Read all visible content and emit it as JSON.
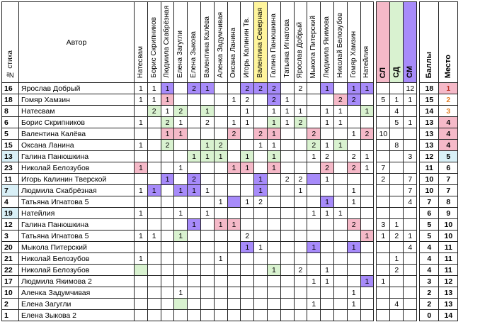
{
  "header": {
    "col_no": "№ стиха",
    "col_author": "Автор",
    "judges": [
      "Натесвам",
      "Борис Скрипников",
      "Людмила Скабрёзная",
      "Елена Загугли",
      "Елена Зыкова",
      "Валентина Калёва",
      "Аленка Задумчивая",
      "Оксана Ланина",
      "Игорь Калинин Тв.",
      "Валентина Северная",
      "Галина Панюшкина",
      "Татьяна Игнатова",
      "Ярослав Добрый",
      "Мыкола Питерский",
      "Людмила Якимова",
      "Николай Белозубов",
      "Гомяр Хамзин",
      "Натейлия"
    ],
    "sum_cols": [
      "СЛ",
      "СД",
      "СМ"
    ],
    "col_score": "Баллы",
    "col_place": "Место"
  },
  "colors": {
    "green": "#d9f2d0",
    "purple": "#a78bfa",
    "pink": "#f5b9c8",
    "light_blue": "#d9f0f7",
    "yellow": "#fff59d",
    "place_red": "#c0392b",
    "place_orange": "#e67e22"
  },
  "rows": [
    {
      "no": "16",
      "author": "Ярослав Добрый",
      "cells": [
        "1",
        "1",
        "1",
        "",
        "2",
        "1",
        "",
        "",
        "2",
        "2",
        "2",
        "",
        "2",
        "",
        "1",
        "",
        "1",
        "1"
      ],
      "cellc": [
        "",
        "",
        "p",
        "",
        "p",
        "p",
        "",
        "",
        "p",
        "p",
        "p",
        "",
        "",
        "",
        "p",
        "",
        "p",
        "p"
      ],
      "sl": "",
      "sd": "",
      "sm": "12",
      "score": "18",
      "place": "1"
    },
    {
      "no": "18",
      "author": "Гомяр Хамзин",
      "cells": [
        "1",
        "1",
        "1",
        "",
        "",
        "",
        "",
        "1",
        "2",
        "",
        "2",
        "1",
        "",
        "",
        "",
        "2",
        "2",
        ""
      ],
      "cellc": [
        "",
        "",
        "k",
        "",
        "",
        "",
        "",
        "",
        "",
        "",
        "p",
        "",
        "",
        "",
        "",
        "k",
        "p",
        ""
      ],
      "sl": "5",
      "sd": "1",
      "sm": "1",
      "score": "15",
      "place": "2"
    },
    {
      "no": "8",
      "author": "Натесвам",
      "cells": [
        "",
        "2",
        "1",
        "2",
        "",
        "1",
        "",
        "",
        "1",
        "",
        "1",
        "1",
        "1",
        "",
        "1",
        "1",
        "",
        "1"
      ],
      "cellc": [
        "",
        "g",
        "",
        "g",
        "",
        "g",
        "",
        "",
        "",
        "",
        "",
        "",
        "",
        "",
        "",
        "",
        "",
        "g"
      ],
      "sl": "",
      "sd": "4",
      "sm": "",
      "score": "14",
      "place": "3"
    },
    {
      "no": "6",
      "author": "Борис Скрипников",
      "cells": [
        "1",
        "",
        "2",
        "1",
        "",
        "2",
        "",
        "1",
        "1",
        "",
        "1",
        "1",
        "2",
        "",
        "1",
        "1",
        "",
        ""
      ],
      "cellc": [
        "",
        "",
        "g",
        "",
        "",
        "",
        "",
        "",
        "",
        "",
        "g",
        "",
        "g",
        "",
        "",
        "",
        "",
        ""
      ],
      "sl": "",
      "sd": "5",
      "sm": "1",
      "score": "13",
      "place": "4"
    },
    {
      "no": "5",
      "author": "Валентина Калёва",
      "cells": [
        "",
        "",
        "1",
        "1",
        "",
        "",
        "",
        "2",
        "",
        "2",
        "1",
        "",
        "",
        "2",
        "",
        "",
        "1",
        "2"
      ],
      "cellc": [
        "",
        "",
        "k",
        "k",
        "",
        "",
        "",
        "k",
        "",
        "k",
        "k",
        "",
        "",
        "k",
        "",
        "",
        "",
        "k"
      ],
      "sl": "10",
      "sd": "",
      "sm": "",
      "score": "13",
      "place": "4"
    },
    {
      "no": "15",
      "author": "Оксана Ланина",
      "cells": [
        "1",
        "",
        "2",
        "",
        "",
        "1",
        "2",
        "",
        "",
        "1",
        "1",
        "",
        "",
        "2",
        "1",
        "1",
        "",
        ""
      ],
      "cellc": [
        "",
        "",
        "g",
        "",
        "",
        "g",
        "g",
        "",
        "",
        "",
        "",
        "",
        "",
        "g",
        "",
        "g",
        "",
        ""
      ],
      "sl": "",
      "sd": "8",
      "sm": "",
      "score": "13",
      "place": "4"
    },
    {
      "no": "13",
      "author": "Галина Панюшкина",
      "cells": [
        "",
        "",
        "",
        "",
        "1",
        "1",
        "1",
        "",
        "1",
        "",
        "1",
        "",
        "",
        "1",
        "2",
        "",
        "2",
        "1"
      ],
      "cellc": [
        "",
        "",
        "",
        "",
        "g",
        "g",
        "g",
        "",
        "g",
        "",
        "g",
        "",
        "",
        "",
        "",
        "",
        "",
        ""
      ],
      "sl": "",
      "sd": "",
      "sm": "3",
      "score": "12",
      "place": "5"
    },
    {
      "no": "23",
      "author": "Николай Белозубов",
      "cells": [
        "1",
        "",
        "",
        "1",
        "",
        "",
        "",
        "1",
        "1",
        "",
        "1",
        "",
        "",
        "",
        "2",
        "",
        "2",
        "1"
      ],
      "cellc": [
        "k",
        "",
        "",
        "",
        "",
        "",
        "",
        "k",
        "k",
        "",
        "k",
        "",
        "",
        "",
        "k",
        "",
        "k",
        ""
      ],
      "sl": "7",
      "sd": "",
      "sm": "",
      "score": "11",
      "place": "6"
    },
    {
      "no": "11",
      "author": "Игорь Калинин Тверской",
      "cells": [
        "",
        "",
        "1",
        "",
        "2",
        "",
        "",
        "",
        "",
        "1",
        "",
        "2",
        "2",
        "",
        "1",
        "",
        "",
        ""
      ],
      "cellc": [
        "",
        "",
        "p",
        "",
        "p",
        "",
        "",
        "",
        "",
        "p",
        "",
        "",
        "",
        "p",
        "",
        "",
        "",
        ""
      ],
      "sl": "2",
      "sd": "",
      "sm": "7",
      "score": "10",
      "place": "7"
    },
    {
      "no": "7",
      "author": "Людмила Скабрёзная",
      "cells": [
        "1",
        "1",
        "",
        "1",
        "1",
        "1",
        "",
        "",
        "",
        "1",
        "",
        "",
        "1",
        "",
        "",
        "",
        "1",
        ""
      ],
      "cellc": [
        "",
        "p",
        "",
        "p",
        "p",
        "",
        "",
        "",
        "",
        "p",
        "",
        "",
        "",
        "",
        "",
        "",
        "",
        ""
      ],
      "sl": "",
      "sd": "",
      "sm": "7",
      "score": "10",
      "place": "7"
    },
    {
      "no": "4",
      "author": "Татьяна Игнатова 5",
      "cells": [
        "",
        "",
        "",
        "",
        "",
        "",
        "1",
        "",
        "1",
        "2",
        "",
        "",
        "",
        "",
        "1",
        "",
        "1",
        ""
      ],
      "cellc": [
        "",
        "",
        "",
        "",
        "",
        "",
        "",
        "p",
        "",
        "",
        "",
        "",
        "",
        "",
        "p",
        "",
        "",
        ""
      ],
      "sl": "",
      "sd": "",
      "sm": "4",
      "score": "7",
      "place": "8"
    },
    {
      "no": "19",
      "author": "Натейлия",
      "cells": [
        "1",
        "",
        "",
        "1",
        "",
        "1",
        "",
        "",
        "",
        "",
        "",
        "",
        "",
        "1",
        "1",
        "1",
        "",
        ""
      ],
      "cellc": [
        "",
        "",
        "",
        "",
        "",
        "",
        "",
        "",
        "",
        "",
        "",
        "",
        "",
        "",
        "",
        "",
        "",
        ""
      ],
      "sl": "",
      "sd": "",
      "sm": "",
      "score": "6",
      "place": "9"
    },
    {
      "no": "12",
      "author": "Галина Панюшкина",
      "cells": [
        "",
        "",
        "",
        "",
        "1",
        "",
        "1",
        "1",
        "",
        "",
        "",
        "",
        "",
        "",
        "",
        "",
        "2",
        ""
      ],
      "cellc": [
        "",
        "",
        "",
        "",
        "p",
        "",
        "k",
        "k",
        "",
        "",
        "",
        "",
        "",
        "",
        "",
        "",
        "k",
        ""
      ],
      "sl": "3",
      "sd": "1",
      "sm": "",
      "score": "5",
      "place": "10"
    },
    {
      "no": "3",
      "author": "Татьяна Игнатова 5",
      "cells": [
        "1",
        "1",
        "",
        "1",
        "",
        "",
        "",
        "",
        "2",
        "",
        "",
        "",
        "",
        "",
        "",
        "",
        "",
        "1"
      ],
      "cellc": [
        "",
        "",
        "",
        "g",
        "",
        "",
        "",
        "",
        "",
        "",
        "",
        "",
        "",
        "",
        "",
        "",
        "",
        "k"
      ],
      "sl": "1",
      "sd": "2",
      "sm": "1",
      "score": "5",
      "place": "10"
    },
    {
      "no": "20",
      "author": "Мыкола Питерский",
      "cells": [
        "",
        "",
        "",
        "",
        "",
        "",
        "",
        "",
        "1",
        "1",
        "",
        "",
        "",
        "1",
        "",
        "",
        "1",
        ""
      ],
      "cellc": [
        "",
        "",
        "",
        "",
        "",
        "",
        "",
        "",
        "p",
        "",
        "",
        "",
        "",
        "p",
        "",
        "",
        "p",
        ""
      ],
      "sl": "",
      "sd": "",
      "sm": "4",
      "score": "4",
      "place": "11"
    },
    {
      "no": "21",
      "author": "Николай Белозубов",
      "cells": [
        "1",
        "",
        "",
        "",
        "",
        "",
        "1",
        "",
        "",
        "",
        "",
        "",
        "",
        "",
        "",
        "",
        "",
        ""
      ],
      "cellc": [
        "",
        "",
        "",
        "",
        "",
        "",
        "",
        "",
        "",
        "",
        "",
        "",
        "",
        "",
        "",
        "",
        "",
        ""
      ],
      "sl": "",
      "sd": "1",
      "sm": "",
      "score": "4",
      "place": "11"
    },
    {
      "no": "22",
      "author": "Николай Белозубов",
      "cells": [
        "",
        "",
        "",
        "",
        "",
        "",
        "",
        "",
        "",
        "",
        "1",
        "",
        "2",
        "",
        "1",
        "",
        "",
        ""
      ],
      "cellc": [
        "g",
        "",
        "",
        "",
        "",
        "",
        "",
        "",
        "",
        "",
        "g",
        "",
        "",
        "",
        "",
        "",
        "",
        ""
      ],
      "sl": "",
      "sd": "2",
      "sm": "",
      "score": "4",
      "place": "11"
    },
    {
      "no": "17",
      "author": "Людмила Якимова 2",
      "cells": [
        "",
        "",
        "",
        "",
        "",
        "",
        "",
        "",
        "",
        "",
        "",
        "",
        "",
        "1",
        "1",
        "",
        "",
        "1"
      ],
      "cellc": [
        "",
        "",
        "",
        "",
        "",
        "",
        "",
        "",
        "",
        "",
        "",
        "",
        "",
        "",
        "",
        "",
        "",
        "p"
      ],
      "sl": "1",
      "sd": "",
      "sm": "",
      "score": "3",
      "place": "12"
    },
    {
      "no": "10",
      "author": "Аленка Задумчивая",
      "cells": [
        "",
        "",
        "",
        "1",
        "",
        "",
        "",
        "",
        "",
        "",
        "",
        "",
        "",
        "",
        "",
        "",
        "1",
        ""
      ],
      "cellc": [
        "",
        "",
        "",
        "",
        "",
        "",
        "",
        "",
        "",
        "",
        "",
        "",
        "",
        "",
        "",
        "",
        "",
        ""
      ],
      "sl": "",
      "sd": "",
      "sm": "",
      "score": "2",
      "place": "13"
    },
    {
      "no": "2",
      "author": "Елена Загугли",
      "cells": [
        "",
        "",
        "",
        "",
        "",
        "",
        "",
        "",
        "",
        "",
        "",
        "",
        "",
        "1",
        "",
        "",
        "1",
        ""
      ],
      "cellc": [
        "",
        "",
        "",
        "g",
        "",
        "",
        "",
        "",
        "",
        "",
        "",
        "",
        "",
        "",
        "",
        "",
        "",
        ""
      ],
      "sl": "",
      "sd": "4",
      "sm": "",
      "score": "2",
      "place": "13"
    },
    {
      "no": "1",
      "author": "Елена Зыкова 2",
      "cells": [
        "",
        "",
        "",
        "",
        "",
        "",
        "",
        "",
        "",
        "",
        "",
        "",
        "",
        "",
        "",
        "",
        "",
        ""
      ],
      "cellc": [
        "",
        "",
        "",
        "",
        "",
        "",
        "",
        "",
        "",
        "",
        "",
        "",
        "",
        "",
        "",
        "",
        "",
        ""
      ],
      "sl": "",
      "sd": "",
      "sm": "",
      "score": "0",
      "place": "14"
    }
  ]
}
